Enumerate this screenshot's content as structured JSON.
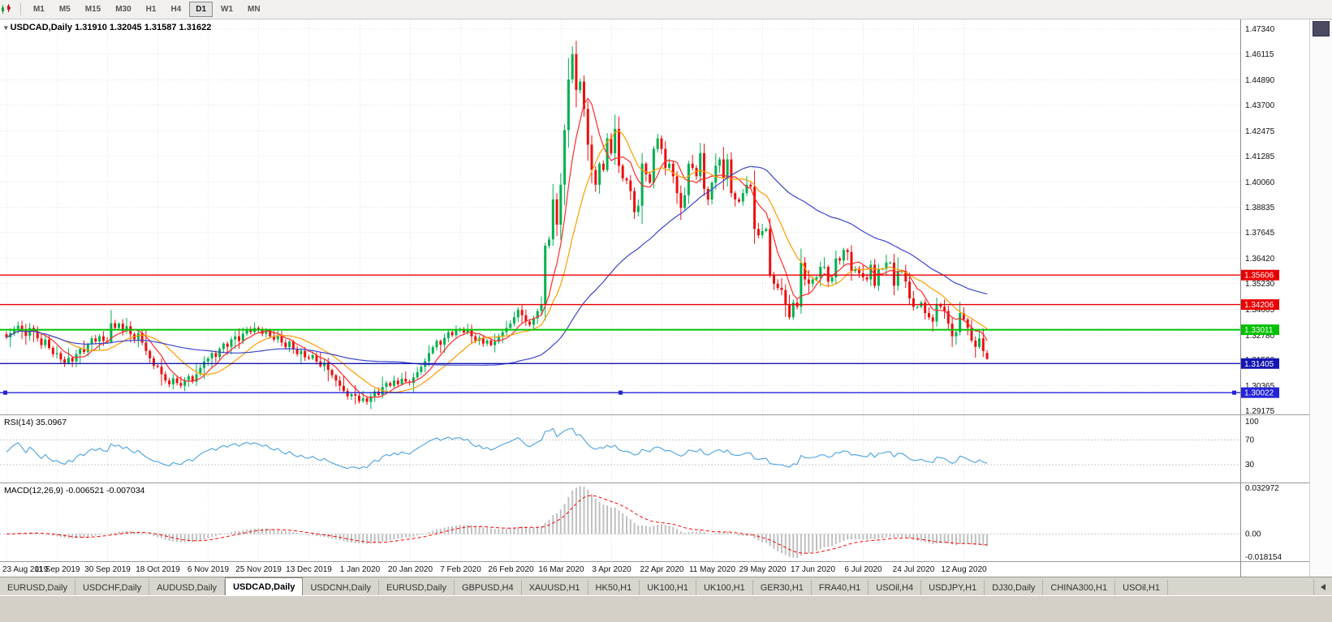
{
  "toolbar": {
    "timeframes": [
      {
        "label": "M1",
        "active": false
      },
      {
        "label": "M5",
        "active": false
      },
      {
        "label": "M15",
        "active": false
      },
      {
        "label": "M30",
        "active": false
      },
      {
        "label": "H1",
        "active": false
      },
      {
        "label": "H4",
        "active": false
      },
      {
        "label": "D1",
        "active": true
      },
      {
        "label": "W1",
        "active": false
      },
      {
        "label": "MN",
        "active": false
      }
    ]
  },
  "chart": {
    "title": "USDCAD,Daily",
    "ohlc": {
      "open": "1.31910",
      "high": "1.32045",
      "low": "1.31587",
      "close": "1.31622"
    },
    "price_axis": [
      "1.47340",
      "1.46115",
      "1.44890",
      "1.43700",
      "1.42475",
      "1.41285",
      "1.40060",
      "1.38835",
      "1.37645",
      "1.36420",
      "1.35230",
      "1.34005",
      "1.32780",
      "1.31590",
      "1.30365",
      "1.29175"
    ],
    "levels": [
      {
        "label": "1.35606",
        "value": 1.35606,
        "color": "#e80000",
        "width": 1.4,
        "selected": false
      },
      {
        "label": "1.34206",
        "value": 1.34206,
        "color": "#e80000",
        "width": 1.4,
        "selected": false
      },
      {
        "label": "1.33011",
        "value": 1.33011,
        "color": "#00c000",
        "width": 2,
        "selected": false
      },
      {
        "label": "1.31405",
        "value": 1.31405,
        "color": "#1515b4",
        "width": 1.4,
        "selected": false
      },
      {
        "label": "1.30022",
        "value": 1.30022,
        "color": "#2323d7",
        "width": 1.4,
        "selected": true
      }
    ],
    "dates": [
      "23 Aug 2019",
      "11 Sep 2019",
      "30 Sep 2019",
      "18 Oct 2019",
      "6 Nov 2019",
      "25 Nov 2019",
      "13 Dec 2019",
      "1 Jan 2020",
      "20 Jan 2020",
      "7 Feb 2020",
      "26 Feb 2020",
      "16 Mar 2020",
      "3 Apr 2020",
      "22 Apr 2020",
      "11 May 2020",
      "29 May 2020",
      "17 Jun 2020",
      "6 Jul 2020",
      "24 Jul 2020",
      "12 Aug 2020"
    ]
  },
  "rsi": {
    "label": "RSI(14)",
    "value": "35.0967",
    "axis": [
      "100",
      "70",
      "30"
    ],
    "color": "#4aa1e0"
  },
  "macd": {
    "label": "MACD(12,26,9)",
    "main_value": "-0.006521",
    "signal_value": "-0.007034",
    "axis": [
      {
        "label": "0.032972",
        "value": 0.032972
      },
      {
        "label": "0.00",
        "value": 0
      },
      {
        "label": "-0.018154",
        "value": -0.018154
      }
    ]
  },
  "tabs": [
    {
      "label": "EURUSD,Daily",
      "active": false
    },
    {
      "label": "USDCHF,Daily",
      "active": false
    },
    {
      "label": "AUDUSD,Daily",
      "active": false
    },
    {
      "label": "USDCAD,Daily",
      "active": true
    },
    {
      "label": "USDCNH,Daily",
      "active": false
    },
    {
      "label": "EURUSD,Daily",
      "active": false
    },
    {
      "label": "GBPUSD,H4",
      "active": false
    },
    {
      "label": "XAUUSD,H1",
      "active": false
    },
    {
      "label": "HK50,H1",
      "active": false
    },
    {
      "label": "UK100,H1",
      "active": false
    },
    {
      "label": "UK100,H1",
      "active": false
    },
    {
      "label": "GER30,H1",
      "active": false
    },
    {
      "label": "FRA40,H1",
      "active": false
    },
    {
      "label": "USOil,H4",
      "active": false
    },
    {
      "label": "USDJPY,H1",
      "active": false
    },
    {
      "label": "DJ30,Daily",
      "active": false
    },
    {
      "label": "CHINA300,H1",
      "active": false
    },
    {
      "label": "USOil,H1",
      "active": false
    }
  ],
  "chart_data": {
    "type": "candlestick",
    "symbol": "USDCAD",
    "timeframe": "Daily",
    "y_range": [
      1.2895,
      1.4775
    ],
    "x_label_step": 13,
    "up_color": "#00b050",
    "down_color": "#ec0f0f",
    "last_candle": {
      "open": 1.3191,
      "high": 1.32045,
      "low": 1.31587,
      "close": 1.31622
    },
    "ma": [
      {
        "period": 7,
        "color": "#ff2a2a"
      },
      {
        "period": 15,
        "color": "#ff9c00"
      },
      {
        "period": 52,
        "color": "#3b46cc"
      }
    ],
    "horizontal_lines": [
      1.35606,
      1.34206,
      1.33011,
      1.31405,
      1.30022
    ],
    "indicators": [
      {
        "type": "rsi",
        "period": 14,
        "current": 35.0967,
        "range": [
          0,
          110
        ],
        "levels": [
          70,
          30
        ]
      },
      {
        "type": "macd",
        "fast": 12,
        "slow": 26,
        "signal": 9,
        "current": -0.006521,
        "signal_current": -0.007034,
        "range": [
          -0.0185,
          0.0335
        ]
      }
    ],
    "closes": [
      1.3265,
      1.3285,
      1.3305,
      1.332,
      1.33,
      1.3272,
      1.331,
      1.3292,
      1.326,
      1.3228,
      1.3255,
      1.3215,
      1.3185,
      1.319,
      1.316,
      1.3142,
      1.3168,
      1.315,
      1.3185,
      1.321,
      1.3195,
      1.3232,
      1.326,
      1.3245,
      1.327,
      1.3248,
      1.3243,
      1.3332,
      1.331,
      1.333,
      1.3295,
      1.3318,
      1.328,
      1.3255,
      1.3285,
      1.324,
      1.32,
      1.3165,
      1.313,
      1.3125,
      1.309,
      1.306,
      1.3042,
      1.307,
      1.3048,
      1.3035,
      1.3062,
      1.308,
      1.3055,
      1.309,
      1.312,
      1.315,
      1.3165,
      1.319,
      1.3172,
      1.321,
      1.3235,
      1.322,
      1.3255,
      1.327,
      1.3248,
      1.3282,
      1.3305,
      1.329,
      1.331,
      1.33,
      1.3282,
      1.3298,
      1.327,
      1.3255,
      1.3272,
      1.324,
      1.3218,
      1.3245,
      1.321,
      1.3185,
      1.32,
      1.317,
      1.3165,
      1.318,
      1.315,
      1.3128,
      1.3145,
      1.311,
      1.3085,
      1.306,
      1.3035,
      1.301,
      1.2985,
      1.2995,
      1.2988,
      1.2962,
      1.2975,
      1.2958,
      1.2985,
      1.3008,
      1.2992,
      1.303,
      1.3048,
      1.3035,
      1.306,
      1.3042,
      1.3068,
      1.3055,
      1.3048,
      1.3075,
      1.31,
      1.3125,
      1.3152,
      1.319,
      1.3218,
      1.3248,
      1.323,
      1.3262,
      1.329,
      1.3275,
      1.3298,
      1.3305,
      1.3288,
      1.3302,
      1.327,
      1.3248,
      1.3262,
      1.3235,
      1.325,
      1.3228,
      1.3245,
      1.3268,
      1.329,
      1.331,
      1.333,
      1.336,
      1.3395,
      1.337,
      1.334,
      1.3325,
      1.3355,
      1.339,
      1.342,
      1.37,
      1.373,
      1.392,
      1.38,
      1.399,
      1.425,
      1.449,
      1.461,
      1.444,
      1.448,
      1.435,
      1.418,
      1.406,
      1.399,
      1.409,
      1.406,
      1.421,
      1.414,
      1.4255,
      1.408,
      1.402,
      1.401,
      1.396,
      1.386,
      1.389,
      1.409,
      1.404,
      1.4,
      1.416,
      1.421,
      1.416,
      1.407,
      1.409,
      1.403,
      1.395,
      1.388,
      1.394,
      1.409,
      1.407,
      1.403,
      1.414,
      1.397,
      1.392,
      1.4,
      1.408,
      1.411,
      1.402,
      1.411,
      1.395,
      1.392,
      1.391,
      1.395,
      1.399,
      1.398,
      1.378,
      1.375,
      1.377,
      1.378,
      1.356,
      1.352,
      1.35,
      1.349,
      1.342,
      1.336,
      1.343,
      1.341,
      1.362,
      1.354,
      1.352,
      1.354,
      1.355,
      1.36,
      1.36,
      1.353,
      1.355,
      1.364,
      1.363,
      1.368,
      1.367,
      1.358,
      1.359,
      1.357,
      1.355,
      1.354,
      1.361,
      1.351,
      1.359,
      1.359,
      1.362,
      1.362,
      1.351,
      1.358,
      1.358,
      1.353,
      1.345,
      1.341,
      1.341,
      1.343,
      1.338,
      1.336,
      1.334,
      1.342,
      1.341,
      1.339,
      1.333,
      1.327,
      1.329,
      1.338,
      1.335,
      1.331,
      1.325,
      1.322,
      1.326,
      1.32,
      1.31622
    ]
  }
}
